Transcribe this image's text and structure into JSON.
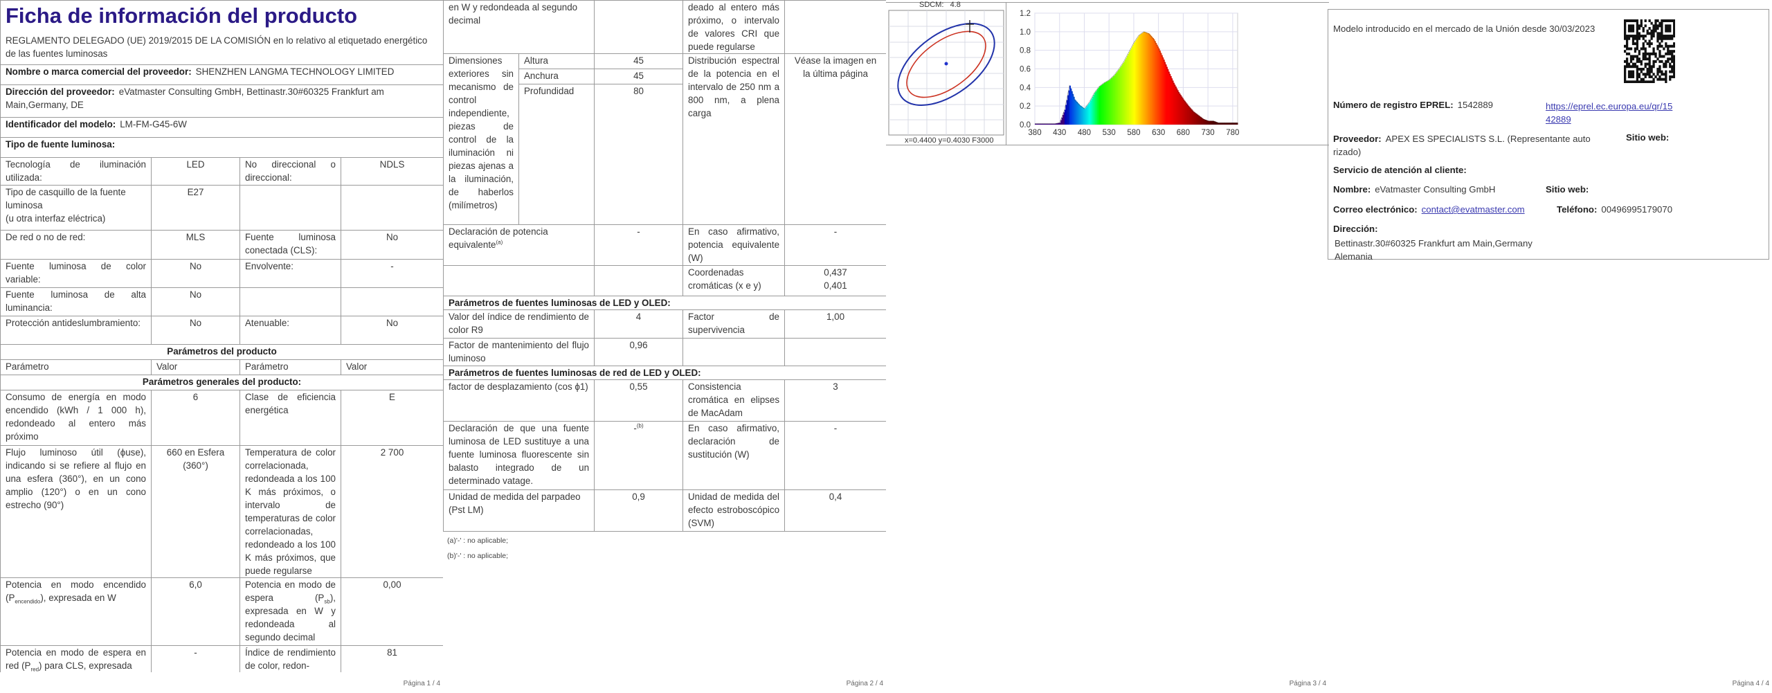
{
  "page1": {
    "title": "Ficha de información del producto",
    "footer": "Página 1 / 4",
    "rows": [
      {
        "cells": [
          {
            "span": 4,
            "cls": "left",
            "title": true,
            "t": "REGLAMENTO DELEGADO (UE) 2019/2015 DE LA COMISIÓN en lo relativo al etiquetado energético de las fuentes luminosas"
          }
        ]
      },
      {
        "cells": [
          {
            "span": 4,
            "cls": "left",
            "b": "Nombre o marca comercial del proveedor:",
            "t": "SHENZHEN LANGMA TECHNOLOGY LIMITED"
          }
        ]
      },
      {
        "cells": [
          {
            "span": 4,
            "cls": "left",
            "b": "Dirección del proveedor:",
            "t": "eVatmaster Consulting GmbH, Bettinastr.30#60325 Frankfurt am Main,Germany, DE"
          }
        ]
      },
      {
        "cells": [
          {
            "span": 4,
            "cls": "left",
            "b": "Identificador del modelo:",
            "t": "LM-FM-G45-6W"
          }
        ]
      },
      {
        "cells": [
          {
            "span": 4,
            "cls": "sec",
            "t": "Tipo de fuente luminosa:"
          }
        ]
      },
      {
        "cells": [
          {
            "t": "Tecnología de iluminación utilizada:"
          },
          {
            "cls": "center",
            "t": "LED"
          },
          {
            "t": "No direccional o direccional:"
          },
          {
            "cls": "center",
            "t": "NDLS"
          }
        ]
      },
      {
        "cells": [
          {
            "cls": "left",
            "t": "Tipo de casquillo de la fuente luminosa",
            "t2": "(u otra interfaz eléctrica)"
          },
          {
            "cls": "center",
            "t": "E27"
          },
          {
            "t": ""
          },
          {
            "t": ""
          }
        ]
      },
      {
        "cells": [
          {
            "cls": "left",
            "t": "De red o no de red:"
          },
          {
            "cls": "center",
            "t": "MLS"
          },
          {
            "t": "Fuente luminosa conectada (CLS):"
          },
          {
            "cls": "center",
            "t": "No"
          }
        ]
      },
      {
        "cells": [
          {
            "t": "Fuente luminosa de color variable:"
          },
          {
            "cls": "center",
            "t": "No"
          },
          {
            "cls": "left",
            "t": "Envolvente:"
          },
          {
            "cls": "center",
            "t": "-"
          }
        ]
      },
      {
        "cells": [
          {
            "t": "Fuente luminosa de alta luminancia:"
          },
          {
            "cls": "center",
            "t": "No"
          },
          {
            "t": ""
          },
          {
            "t": ""
          }
        ]
      },
      {
        "cells": [
          {
            "t": "Protección antideslumbramiento:"
          },
          {
            "cls": "center",
            "t": "No"
          },
          {
            "cls": "left",
            "t": "Atenuable:"
          },
          {
            "cls": "center",
            "t": "No"
          }
        ]
      },
      {
        "cells": [
          {
            "span": 4,
            "cls": "head",
            "t": "Parámetros del producto"
          }
        ]
      },
      {
        "cells": [
          {
            "cls": "left",
            "t": "Parámetro"
          },
          {
            "cls": "left",
            "t": "Valor"
          },
          {
            "cls": "left",
            "t": "Parámetro"
          },
          {
            "cls": "left",
            "t": "Valor"
          }
        ]
      },
      {
        "cells": [
          {
            "span": 4,
            "cls": "head",
            "t": "Parámetros generales del producto:"
          }
        ]
      },
      {
        "cells": [
          {
            "t": "Consumo de energía en modo encendido (kWh / 1 000 h), redondeado al entero más próximo"
          },
          {
            "cls": "center",
            "t": "6"
          },
          {
            "t": "Clase de eficiencia energética"
          },
          {
            "cls": "center",
            "t": "E"
          }
        ]
      },
      {
        "cells": [
          {
            "t": "Flujo luminoso útil (ϕuse), indicando si se refiere al flujo en una esfera (360°), en un cono amplio (120°) o en un cono estrecho (90°)"
          },
          {
            "cls": "center",
            "t": "660 en Esfera (360°)"
          },
          {
            "t": "Temperatura de color correlacionada, redondeada a los 100 K más próximos, o intervalo de temperaturas de color correlacionadas, redondeado a los 100 K más próximos, que puede regularse"
          },
          {
            "cls": "center",
            "t": "2 700"
          }
        ]
      },
      {
        "cells": [
          {
            "t": "Potencia en modo encendido (P",
            "sub": "encendido",
            "t3": "), expresada en W"
          },
          {
            "cls": "center",
            "t": "6,0"
          },
          {
            "t": "Potencia en modo de espera (P",
            "sub": "sb",
            "t3": "), expresada en W y redondeada al segundo decimal"
          },
          {
            "cls": "center",
            "t": "0,00"
          }
        ]
      },
      {
        "cells": [
          {
            "t": "Potencia en modo de espera en red (P",
            "sub": "red",
            "t3": ") para CLS, expresada"
          },
          {
            "cls": "center",
            "t": "-"
          },
          {
            "t": "Índice de rendimiento de color, redon-"
          },
          {
            "cls": "center",
            "t": "81"
          }
        ]
      }
    ]
  },
  "page2": {
    "footer": "Página 2 / 4",
    "footnotes": [
      "(a)'-' : no aplicable;",
      "(b)'-' : no aplicable;"
    ],
    "rows": [
      {
        "cells": [
          {
            "span": 2,
            "cls": "left",
            "t": "en W y redondeada al segundo decimal"
          },
          {
            "t": ""
          },
          {
            "t": "deado al entero más próximo, o intervalo de valores CRI que puede regularse"
          },
          {
            "t": ""
          }
        ]
      },
      {
        "cells": [
          {
            "rspan": 3,
            "t": "Dimensiones exteriores sin mecanismo de control independiente, piezas de control de la iluminación ni piezas ajenas a la iluminación, de haberlos (milímetros)"
          },
          {
            "cls": "left",
            "t": "Altura"
          },
          {
            "cls": "center",
            "t": "45"
          },
          {
            "rspan": 3,
            "t": "Distribución espectral de la potencia en el intervalo de 250 nm a 800 nm, a plena carga"
          },
          {
            "rspan": 3,
            "cls": "center",
            "t": "Véase la imagen en la última página"
          }
        ]
      },
      {
        "cells": [
          {
            "cls": "left",
            "t": "Anchura"
          },
          {
            "cls": "center",
            "t": "45"
          }
        ]
      },
      {
        "cells": [
          {
            "cls": "left",
            "t": "Profundidad"
          },
          {
            "cls": "center",
            "t": "80"
          }
        ]
      },
      {
        "cells": [
          {
            "span": 2,
            "cls": "left",
            "t": "Declaración de potencia equivalente",
            "sup": "(a)"
          },
          {
            "cls": "center",
            "t": "-"
          },
          {
            "t": "En caso afirmativo, potencia equivalente (W)"
          },
          {
            "cls": "center",
            "t": "-"
          }
        ]
      },
      {
        "cells": [
          {
            "span": 2,
            "t": ""
          },
          {
            "t": ""
          },
          {
            "t": "Coordenadas cromáticas (x e y)"
          },
          {
            "cls": "center",
            "t": "0,437",
            "t2": "0,401"
          }
        ]
      },
      {
        "cells": [
          {
            "span": 5,
            "cls": "sec",
            "t": "Parámetros de fuentes luminosas de LED y OLED:"
          }
        ]
      },
      {
        "cells": [
          {
            "span": 2,
            "t": "Valor del índice de rendimiento de color R9"
          },
          {
            "cls": "center",
            "t": "4"
          },
          {
            "t": "Factor de supervivencia"
          },
          {
            "cls": "center",
            "t": "1,00"
          }
        ]
      },
      {
        "cells": [
          {
            "span": 2,
            "t": "Factor de mantenimiento del flujo luminoso"
          },
          {
            "cls": "center",
            "t": "0,96"
          },
          {
            "t": ""
          },
          {
            "t": ""
          }
        ]
      },
      {
        "cells": [
          {
            "span": 5,
            "cls": "sec",
            "t": "Parámetros de fuentes luminosas de red de LED y OLED:"
          }
        ]
      },
      {
        "cells": [
          {
            "span": 2,
            "t": "factor de desplazamiento (cos ϕ1)"
          },
          {
            "cls": "center",
            "t": "0,55"
          },
          {
            "t": "Consistencia cromática en elipses de MacAdam"
          },
          {
            "cls": "center",
            "t": "3"
          }
        ]
      },
      {
        "cells": [
          {
            "span": 2,
            "t": "Declaración de que una fuente luminosa de LED sustituye a una fuente luminosa fluorescente sin balasto integrado de un determinado vatage."
          },
          {
            "cls": "center",
            "t": "-",
            "sup": "(b)"
          },
          {
            "t": "En caso afirmativo, declaración de sustitución (W)"
          },
          {
            "cls": "center",
            "t": "-"
          }
        ]
      },
      {
        "cells": [
          {
            "span": 2,
            "cls": "left",
            "t": "Unidad de medida del parpadeo (Pst LM)"
          },
          {
            "cls": "center",
            "t": "0,9"
          },
          {
            "t": "Unidad de medida del efecto estroboscópico (SVM)"
          },
          {
            "cls": "center",
            "t": "0,4"
          }
        ]
      }
    ]
  },
  "page3": {
    "footer": "Página 3 / 4",
    "sdcm_label": "SDCM:",
    "sdcm_value": "4.8",
    "coords_label": "x=0.4400 y=0.4030 F3000",
    "colors": {
      "outer_ellipse": "#2233aa",
      "inner_ellipse": "#cc3322",
      "point": "#2233cc"
    }
  },
  "chart_data": {
    "type": "area",
    "title": "",
    "xlabel": "",
    "ylabel": "",
    "xlim": [
      380,
      790
    ],
    "ylim": [
      0,
      1.2
    ],
    "xticks": [
      "380",
      "430",
      "480",
      "530",
      "580",
      "630",
      "680",
      "730",
      "780"
    ],
    "yticks": [
      "0.0",
      "0.2",
      "0.4",
      "0.6",
      "0.8",
      "1.0",
      "1.2"
    ],
    "grid": true,
    "x": [
      380,
      390,
      400,
      410,
      420,
      430,
      440,
      450,
      460,
      470,
      480,
      490,
      500,
      510,
      520,
      530,
      540,
      550,
      560,
      570,
      580,
      590,
      600,
      610,
      620,
      630,
      640,
      650,
      660,
      670,
      680,
      690,
      700,
      710,
      720,
      730,
      740,
      750,
      760,
      770,
      780,
      790
    ],
    "values": [
      0.01,
      0.01,
      0.01,
      0.01,
      0.01,
      0.02,
      0.16,
      0.42,
      0.27,
      0.21,
      0.17,
      0.24,
      0.34,
      0.41,
      0.45,
      0.48,
      0.53,
      0.6,
      0.68,
      0.78,
      0.88,
      0.96,
      1.0,
      0.98,
      0.92,
      0.82,
      0.7,
      0.57,
      0.45,
      0.35,
      0.27,
      0.2,
      0.14,
      0.1,
      0.06,
      0.04,
      0.04,
      0.02,
      0.02,
      0.02,
      0.02,
      0.02
    ]
  },
  "page4": {
    "footer": "Página 4 / 4",
    "market_text": "Modelo introducido en el mercado de la Unión desde 30/03/2023",
    "eprel_label": "Número de registro EPREL:",
    "eprel_value": "1542889",
    "eprel_link_1": "https://eprel.ec.europa.eu/qr/15",
    "eprel_link_2": "42889",
    "supplier_label": "Proveedor:",
    "supplier_value": "APEX ES SPECIALISTS S.L. (Representante auto",
    "supplier_value_2": "rizado)",
    "website_label": "Sitio web:",
    "service_label": "Servicio de atención al cliente:",
    "name_label": "Nombre:",
    "name_value": "eVatmaster Consulting GmbH",
    "website_label_2": "Sitio web:",
    "email_label": "Correo electrónico:",
    "email_value": "contact@evatmaster.com",
    "phone_label": "Teléfono:",
    "phone_value": "00496995179070",
    "address_label": "Dirección:",
    "address_line_1": "Bettinastr.30#60325 Frankfurt am Main,Germany",
    "address_line_2": "Alemania",
    "qr_icon": "qr-code"
  }
}
